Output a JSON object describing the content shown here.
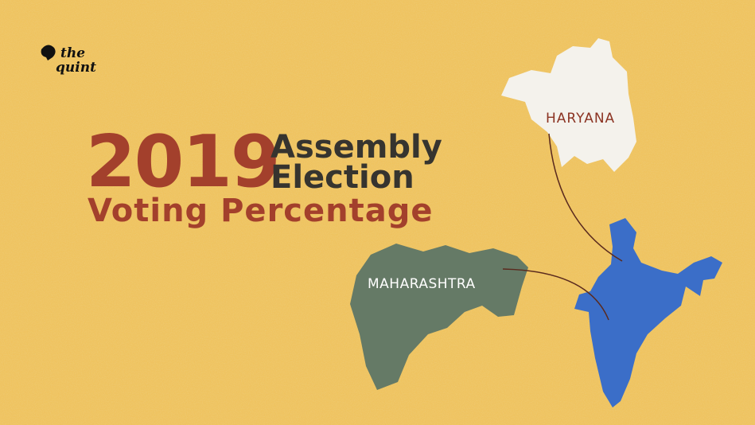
{
  "logo": {
    "line1": "the",
    "line2": "quint"
  },
  "title": {
    "year": "2019",
    "line1": "Assembly",
    "line2": "Election",
    "subtitle": "Voting Percentage"
  },
  "labels": {
    "haryana": "HARYANA",
    "maharashtra": "MAHARASHTRA"
  }
}
